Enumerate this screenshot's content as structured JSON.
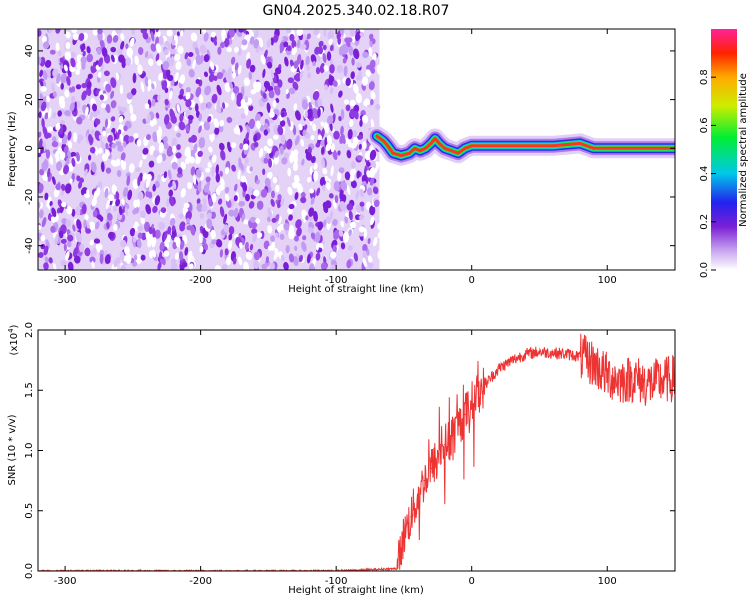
{
  "title": "GN04.2025.340.02.18.R07",
  "charts": [
    {
      "type": "heatmap",
      "xlabel": "Height of straight line (km)",
      "ylabel": "Frequency (Hz)",
      "xlim": [
        -320,
        150
      ],
      "ylim": [
        -50,
        49
      ],
      "xticks": [
        "-300",
        "-200",
        "-100",
        "0",
        "100"
      ],
      "xtick_values": [
        -300,
        -200,
        -100,
        0,
        100
      ],
      "yticks": [
        "-40",
        "-20",
        "0",
        "20",
        "40"
      ],
      "ytick_values": [
        -40,
        -20,
        0,
        20,
        40
      ],
      "noise_region_x": [
        -320,
        -68
      ],
      "signal_track": {
        "x": [
          -70,
          -65,
          -62,
          -58,
          -52,
          -46,
          -42,
          -38,
          -34,
          -30,
          -27,
          -24,
          -20,
          -15,
          -10,
          -5,
          0,
          20,
          40,
          60,
          80,
          90,
          100,
          120,
          150
        ],
        "freq_hz": [
          5,
          3,
          1,
          -2,
          -3,
          -2,
          0,
          -1,
          0,
          2,
          4,
          2,
          0,
          -1,
          -2,
          0,
          1,
          1,
          1,
          1,
          2,
          0,
          0,
          0,
          0
        ]
      },
      "colorbar": {
        "label": "Normalized spectral amplitude",
        "range": [
          0,
          1
        ],
        "ticks": [
          "0.0",
          "0.2",
          "0.4",
          "0.6",
          "0.8"
        ],
        "tick_values": [
          0,
          0.2,
          0.4,
          0.6,
          0.8
        ]
      }
    },
    {
      "type": "line",
      "xlabel": "Height of straight line (km)",
      "ylabel": "SNR (10 * v/v)",
      "y_multiplier": "(x10",
      "y_multiplier_exp": "4",
      "y_multiplier_close": ")",
      "xlim": [
        -320,
        150
      ],
      "ylim": [
        0,
        2.0
      ],
      "xticks": [
        "-300",
        "-200",
        "-100",
        "0",
        "100"
      ],
      "xtick_values": [
        -300,
        -200,
        -100,
        0,
        100
      ],
      "yticks": [
        "0.0",
        "0.5",
        "1.0",
        "1.5",
        "2.0"
      ],
      "ytick_values": [
        0,
        0.5,
        1.0,
        1.5,
        2.0
      ],
      "color": "#ee3333",
      "x": [
        -320,
        -100,
        -55,
        -50,
        -45,
        -40,
        -35,
        -30,
        -25,
        -20,
        -15,
        -10,
        -5,
        0,
        10,
        20,
        30,
        40,
        50,
        60,
        70,
        80,
        90,
        100,
        110,
        120,
        130,
        140,
        150
      ],
      "y": [
        0.0,
        0.0,
        0.02,
        0.3,
        0.45,
        0.6,
        0.75,
        0.85,
        0.95,
        1.05,
        1.1,
        1.2,
        1.3,
        1.4,
        1.55,
        1.68,
        1.75,
        1.8,
        1.82,
        1.81,
        1.8,
        1.78,
        1.72,
        1.62,
        1.58,
        1.6,
        1.55,
        1.58,
        1.6
      ]
    }
  ]
}
